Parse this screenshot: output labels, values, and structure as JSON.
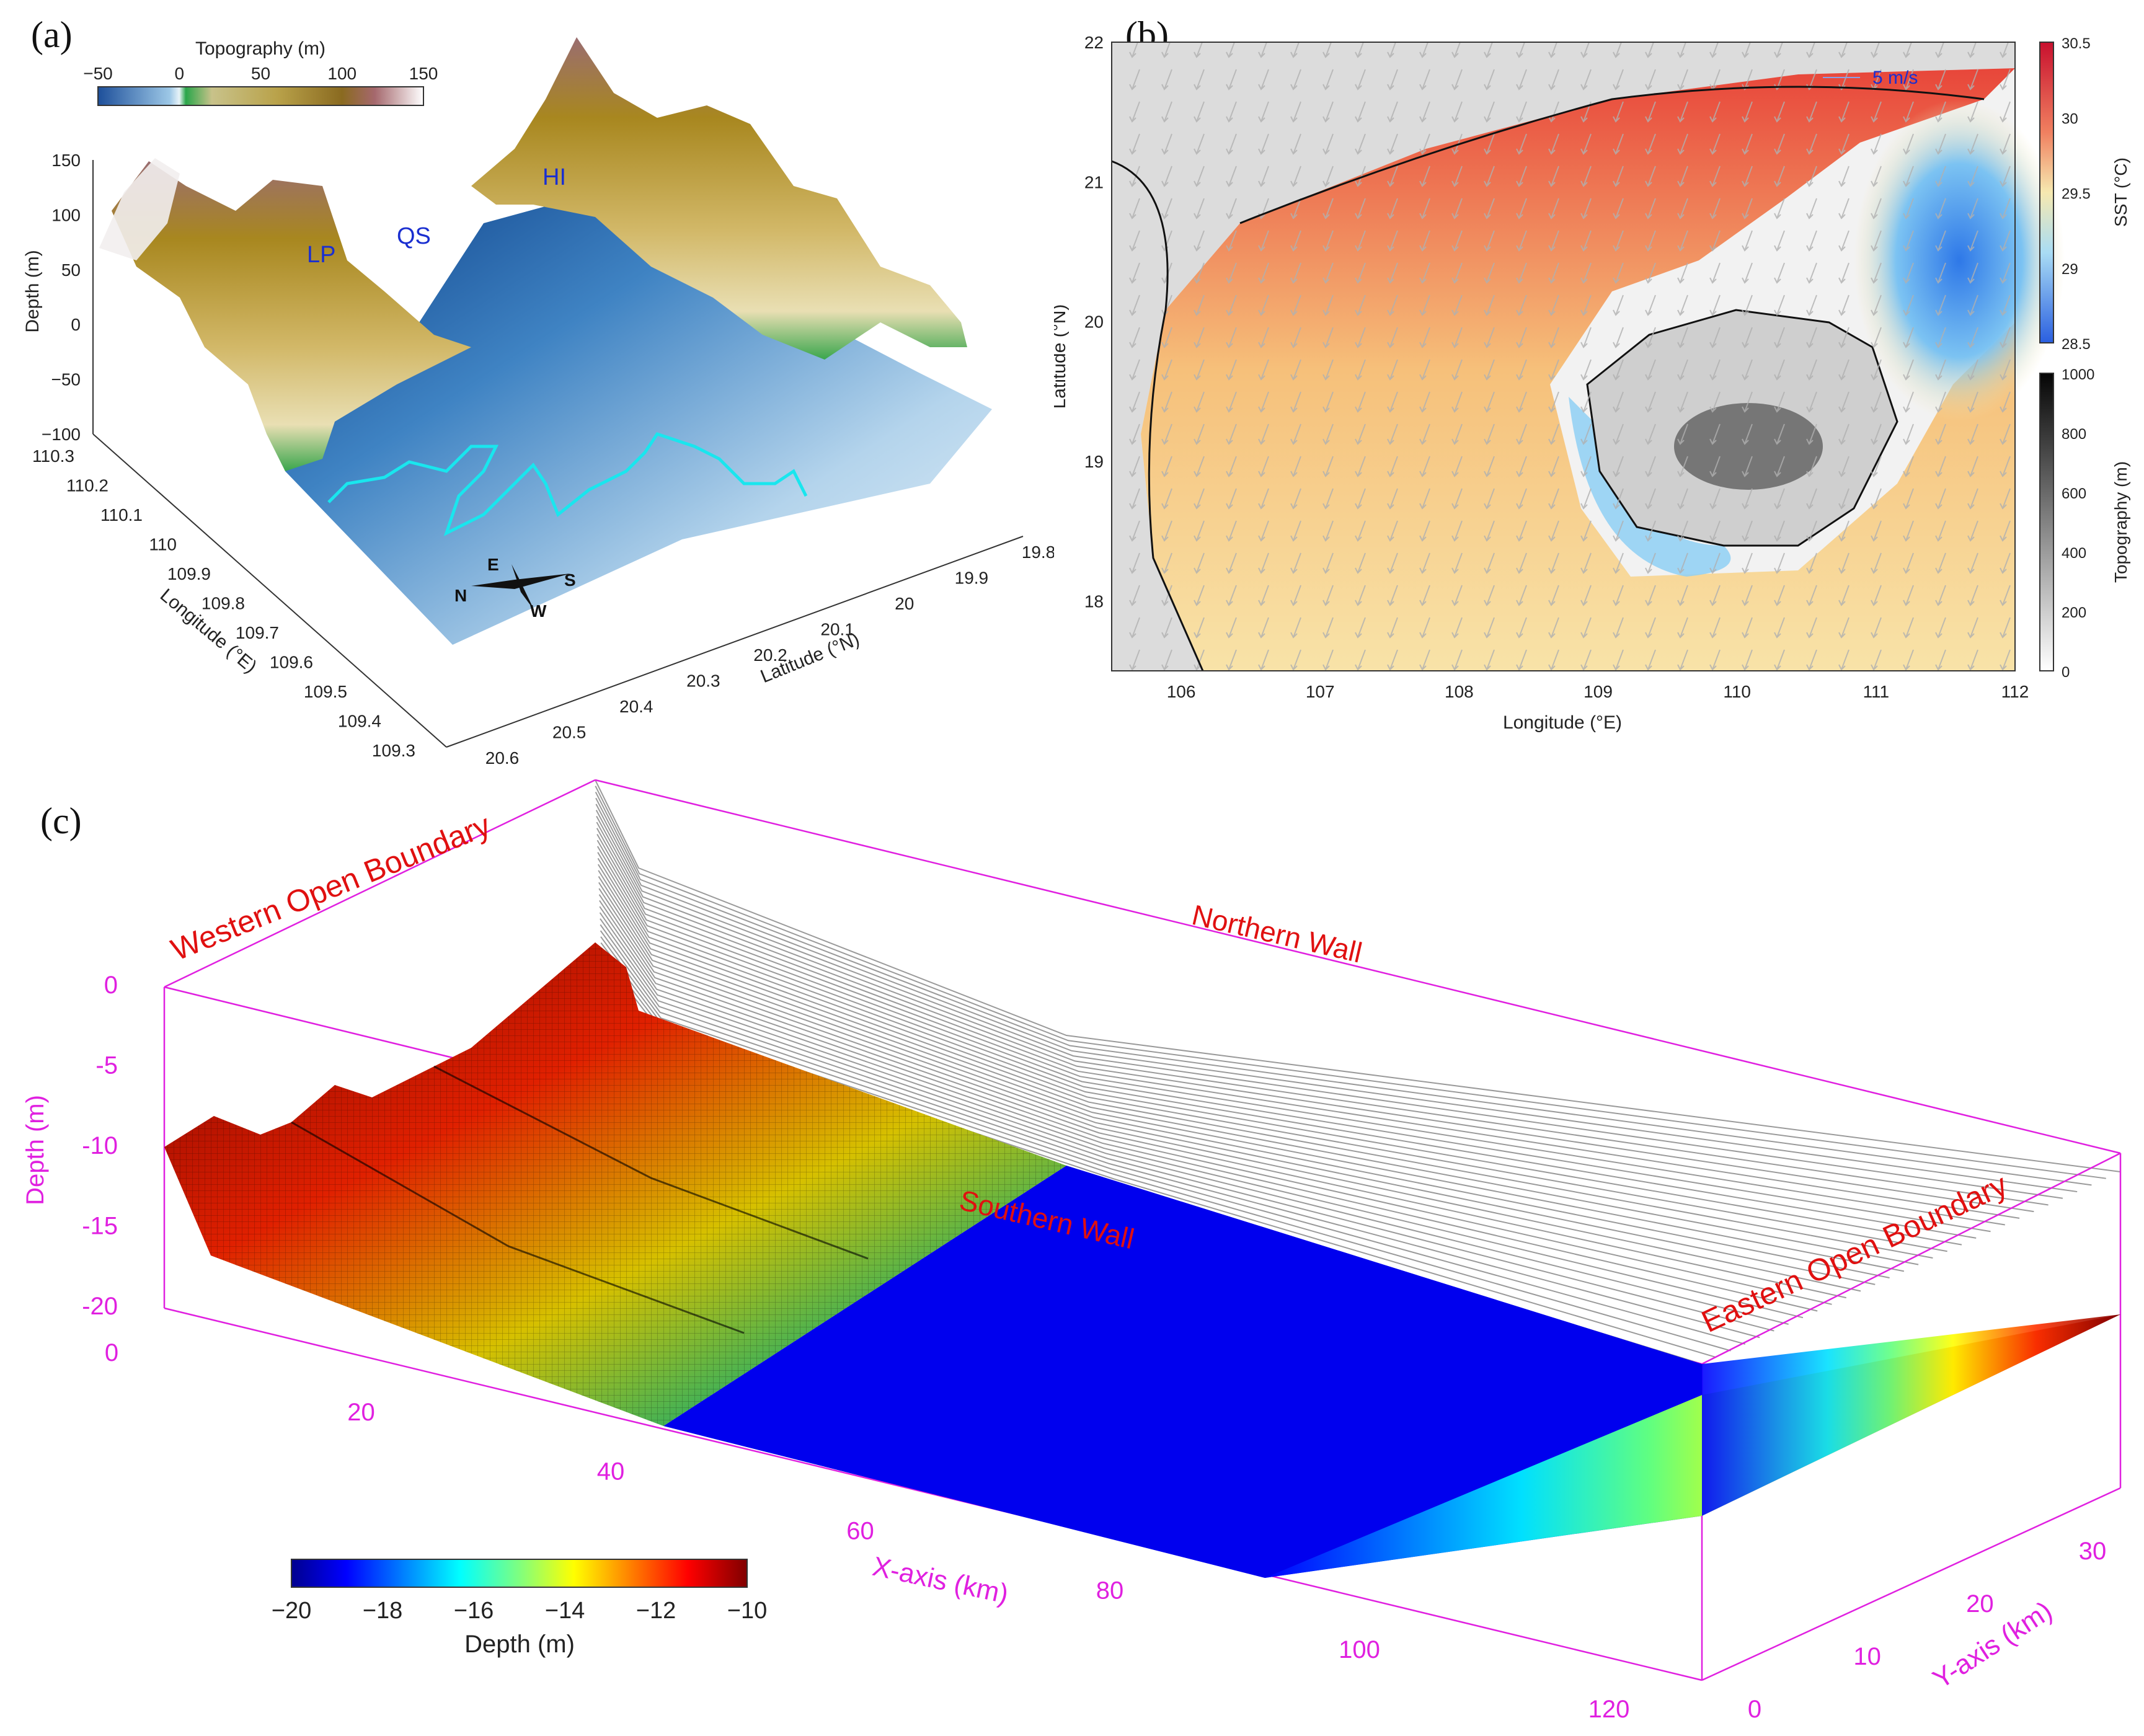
{
  "panel_labels": [
    "(a)",
    "(b)",
    "(c)"
  ],
  "colors": {
    "magenta_axis": "#e020e0",
    "annotation_blue": "#1a2fd0",
    "annotation_red": "#e01010",
    "track_cyan": "#19e6ee"
  },
  "chart_data": [
    {
      "id": "a",
      "type": "surface",
      "colorbar": {
        "title": "Topography (m)",
        "ticks": [
          "−50",
          "0",
          "50",
          "100",
          "150"
        ],
        "range": [
          -50,
          150
        ]
      },
      "zlabel": "Depth (m)",
      "zticks": [
        "150",
        "100",
        "50",
        "0",
        "−50",
        "−100"
      ],
      "xlabel": "Longitude (°E)",
      "xticks": [
        "110.3",
        "110.2",
        "110.1",
        "110",
        "109.9",
        "109.8",
        "109.7",
        "109.6",
        "109.5",
        "109.4",
        "109.3"
      ],
      "ylabel": "Latitude (°N)",
      "yticks": [
        "20.6",
        "20.5",
        "20.4",
        "20.3",
        "20.2",
        "20.1",
        "20",
        "19.9",
        "19.8"
      ],
      "annotations": [
        "LP",
        "QS",
        "HI"
      ],
      "compass": [
        "E",
        "N",
        "S",
        "W"
      ]
    },
    {
      "id": "b",
      "type": "heatmap",
      "xlabel": "Longitude (°E)",
      "xticks": [
        "106",
        "107",
        "108",
        "109",
        "110",
        "111",
        "112"
      ],
      "xlim": [
        105.5,
        112
      ],
      "ylabel": "Latitude (°N)",
      "yticks": [
        "22",
        "21",
        "20",
        "19",
        "18"
      ],
      "ylim": [
        17.5,
        22
      ],
      "vector_legend": "5 m/s",
      "colorbars": [
        {
          "title": "SST (°C)",
          "ticks": [
            "30.5",
            "30",
            "29.5",
            "29",
            "28.5"
          ],
          "range": [
            28.5,
            30.5
          ]
        },
        {
          "title": "Topography (m)",
          "ticks": [
            "1000",
            "800",
            "600",
            "400",
            "200",
            "0"
          ],
          "range": [
            0,
            1000
          ]
        }
      ]
    },
    {
      "id": "c",
      "type": "surface",
      "zlabel": "Depth (m)",
      "zticks": [
        "0",
        "-5",
        "-10",
        "-15",
        "-20"
      ],
      "xlabel": "X-axis (km)",
      "xticks": [
        "0",
        "20",
        "40",
        "60",
        "80",
        "100",
        "120"
      ],
      "ylabel": "Y-axis (km)",
      "yticks": [
        "0",
        "10",
        "20",
        "30"
      ],
      "colorbar": {
        "title": "Depth (m)",
        "ticks": [
          "−20",
          "−18",
          "−16",
          "−14",
          "−12",
          "−10"
        ],
        "range": [
          -20,
          -10
        ]
      },
      "annotations": [
        "Western Open Boundary",
        "Northern Wall",
        "Southern Wall",
        "Eastern Open Boundary"
      ]
    }
  ]
}
